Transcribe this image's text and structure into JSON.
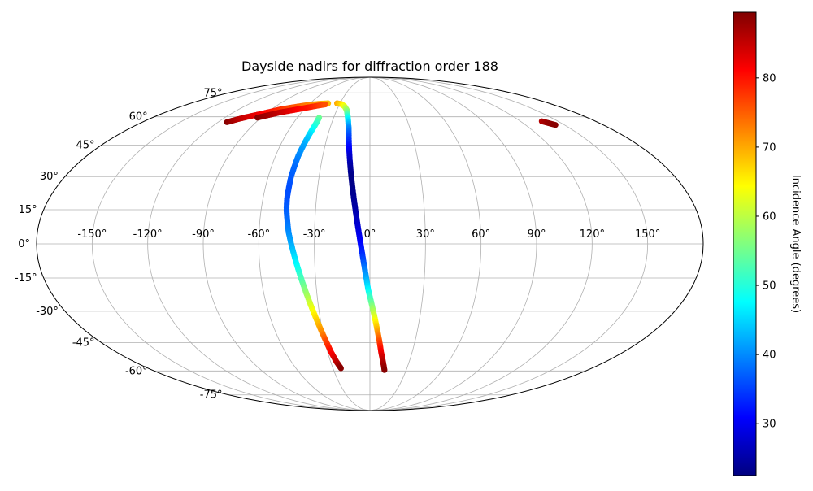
{
  "chart_data": {
    "type": "scatter",
    "projection": "mollweide",
    "title": "Dayside nadirs for diffraction order 188",
    "lon_ticks": [
      -150,
      -120,
      -90,
      -60,
      -30,
      0,
      30,
      60,
      90,
      120,
      150
    ],
    "lon_tick_labels": [
      "-150°",
      "-120°",
      "-90°",
      "-60°",
      "-30°",
      "0°",
      "30°",
      "60°",
      "90°",
      "120°",
      "150°"
    ],
    "lat_ticks": [
      -75,
      -60,
      -45,
      -30,
      -15,
      0,
      15,
      30,
      45,
      60,
      75
    ],
    "lat_tick_labels": [
      "-75°",
      "-60°",
      "-45°",
      "-30°",
      "-15°",
      "0°",
      "15°",
      "30°",
      "45°",
      "60°",
      "75°"
    ],
    "grid": true,
    "colormap": "jet",
    "colorbar": {
      "label": "Incidence Angle (degrees)",
      "range": [
        22.5,
        89.5
      ],
      "ticks": [
        30,
        40,
        50,
        60,
        70,
        80
      ],
      "tick_labels": [
        "30",
        "40",
        "50",
        "60",
        "70",
        "80"
      ]
    },
    "series": [
      {
        "points": [
          {
            "lon": -42,
            "lat": 59.5,
            "inc": 55
          },
          {
            "lon": -42,
            "lat": 57,
            "inc": 52
          },
          {
            "lon": -42.5,
            "lat": 54,
            "inc": 49
          },
          {
            "lon": -43.5,
            "lat": 50,
            "inc": 45
          },
          {
            "lon": -44.5,
            "lat": 45,
            "inc": 42
          },
          {
            "lon": -45.5,
            "lat": 40,
            "inc": 40
          },
          {
            "lon": -46,
            "lat": 35,
            "inc": 38
          },
          {
            "lon": -46.5,
            "lat": 30,
            "inc": 37
          },
          {
            "lon": -46.5,
            "lat": 25,
            "inc": 36
          },
          {
            "lon": -46.5,
            "lat": 20,
            "inc": 36
          },
          {
            "lon": -46,
            "lat": 15,
            "inc": 37
          },
          {
            "lon": -45,
            "lat": 10,
            "inc": 38
          },
          {
            "lon": -44,
            "lat": 5,
            "inc": 40
          },
          {
            "lon": -42.5,
            "lat": 0,
            "inc": 42
          },
          {
            "lon": -41,
            "lat": -5,
            "inc": 45
          },
          {
            "lon": -39.5,
            "lat": -10,
            "inc": 48
          },
          {
            "lon": -38,
            "lat": -15,
            "inc": 52
          },
          {
            "lon": -36.5,
            "lat": -20,
            "inc": 56
          },
          {
            "lon": -35,
            "lat": -25,
            "inc": 60
          },
          {
            "lon": -33.5,
            "lat": -30,
            "inc": 64
          },
          {
            "lon": -32,
            "lat": -35,
            "inc": 68
          },
          {
            "lon": -30.5,
            "lat": -40,
            "inc": 72
          },
          {
            "lon": -29,
            "lat": -45,
            "inc": 77
          },
          {
            "lon": -27.5,
            "lat": -50,
            "inc": 81
          },
          {
            "lon": -25.5,
            "lat": -55,
            "inc": 85
          },
          {
            "lon": -23.5,
            "lat": -58.5,
            "inc": 89
          }
        ]
      },
      {
        "points": [
          {
            "lon": -33,
            "lat": 68,
            "inc": 70
          },
          {
            "lon": -28,
            "lat": 67.5,
            "inc": 67
          },
          {
            "lon": -24,
            "lat": 66,
            "inc": 63
          },
          {
            "lon": -21,
            "lat": 64,
            "inc": 58
          },
          {
            "lon": -19,
            "lat": 61,
            "inc": 52
          },
          {
            "lon": -17.5,
            "lat": 58,
            "inc": 46
          },
          {
            "lon": -16,
            "lat": 54,
            "inc": 40
          },
          {
            "lon": -15,
            "lat": 50,
            "inc": 36
          },
          {
            "lon": -14,
            "lat": 45,
            "inc": 32
          },
          {
            "lon": -13,
            "lat": 40,
            "inc": 28
          },
          {
            "lon": -12,
            "lat": 35,
            "inc": 25
          },
          {
            "lon": -11,
            "lat": 30,
            "inc": 23
          },
          {
            "lon": -10,
            "lat": 25,
            "inc": 23
          },
          {
            "lon": -9,
            "lat": 20,
            "inc": 24
          },
          {
            "lon": -8,
            "lat": 15,
            "inc": 25
          },
          {
            "lon": -7,
            "lat": 10,
            "inc": 27
          },
          {
            "lon": -6,
            "lat": 5,
            "inc": 29
          },
          {
            "lon": -5,
            "lat": 0,
            "inc": 31
          },
          {
            "lon": -4,
            "lat": -5,
            "inc": 34
          },
          {
            "lon": -3,
            "lat": -10,
            "inc": 38
          },
          {
            "lon": -2,
            "lat": -15,
            "inc": 42
          },
          {
            "lon": -1,
            "lat": -20,
            "inc": 47
          },
          {
            "lon": 0.5,
            "lat": -25,
            "inc": 53
          },
          {
            "lon": 2,
            "lat": -30,
            "inc": 59
          },
          {
            "lon": 3.5,
            "lat": -35,
            "inc": 65
          },
          {
            "lon": 5,
            "lat": -40,
            "inc": 71
          },
          {
            "lon": 6.5,
            "lat": -45,
            "inc": 77
          },
          {
            "lon": 8,
            "lat": -50,
            "inc": 82
          },
          {
            "lon": 10,
            "lat": -55,
            "inc": 86
          },
          {
            "lon": 12,
            "lat": -59.5,
            "inc": 89
          }
        ]
      },
      {
        "points": [
          {
            "lon": -113,
            "lat": 57,
            "inc": 89
          },
          {
            "lon": -108,
            "lat": 58.5,
            "inc": 86
          },
          {
            "lon": -102,
            "lat": 60,
            "inc": 84
          },
          {
            "lon": -95,
            "lat": 61.5,
            "inc": 82
          },
          {
            "lon": -88,
            "lat": 63,
            "inc": 80
          },
          {
            "lon": -81,
            "lat": 64.5,
            "inc": 78
          },
          {
            "lon": -73,
            "lat": 65.5,
            "inc": 76
          },
          {
            "lon": -65,
            "lat": 66.5,
            "inc": 74
          },
          {
            "lon": -57,
            "lat": 67.3,
            "inc": 72
          },
          {
            "lon": -49,
            "lat": 67.8,
            "inc": 70
          },
          {
            "lon": -42,
            "lat": 68,
            "inc": 69
          }
        ]
      },
      {
        "points": [
          {
            "lon": -93,
            "lat": 59.5,
            "inc": 89
          },
          {
            "lon": -86,
            "lat": 61,
            "inc": 87
          },
          {
            "lon": -79,
            "lat": 62.5,
            "inc": 85
          },
          {
            "lon": -72,
            "lat": 63.5,
            "inc": 83
          },
          {
            "lon": -65,
            "lat": 64.5,
            "inc": 81
          },
          {
            "lon": -58,
            "lat": 65.5,
            "inc": 80
          },
          {
            "lon": -51,
            "lat": 66.5,
            "inc": 78
          },
          {
            "lon": -44,
            "lat": 67.3,
            "inc": 76
          }
        ]
      },
      {
        "points": [
          {
            "lon": 137,
            "lat": 57.5,
            "inc": 86
          },
          {
            "lon": 140,
            "lat": 56.5,
            "inc": 88
          },
          {
            "lon": 143,
            "lat": 55.5,
            "inc": 89
          }
        ]
      }
    ]
  }
}
